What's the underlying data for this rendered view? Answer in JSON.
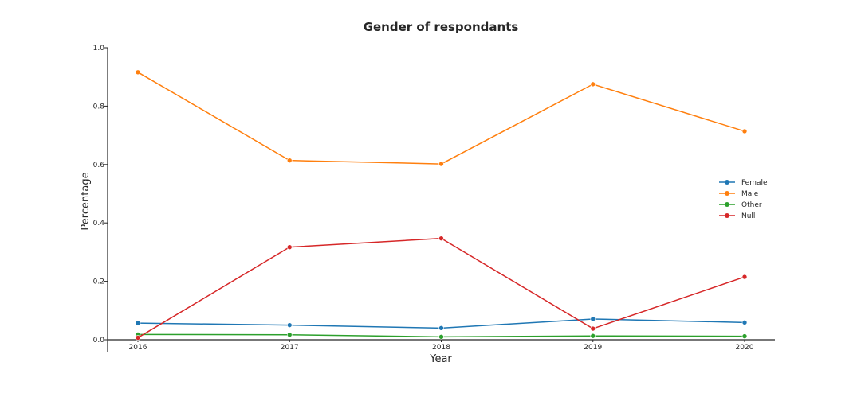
{
  "chart_data": {
    "type": "line",
    "title": "Gender of respondants",
    "xlabel": "Year",
    "ylabel": "Percentage",
    "x": [
      "2016",
      "2017",
      "2018",
      "2019",
      "2020"
    ],
    "ylim": [
      0.0,
      1.0
    ],
    "yticks": [
      "0.0",
      "0.2",
      "0.4",
      "0.6",
      "0.8",
      "1.0"
    ],
    "grid": false,
    "legend_position": "center-right",
    "series": [
      {
        "name": "Female",
        "color": "#1f77b4",
        "values": [
          0.057,
          0.05,
          0.04,
          0.071,
          0.059
        ]
      },
      {
        "name": "Male",
        "color": "#ff7f0e",
        "values": [
          0.916,
          0.614,
          0.602,
          0.875,
          0.714
        ]
      },
      {
        "name": "Other",
        "color": "#2ca02c",
        "values": [
          0.018,
          0.017,
          0.01,
          0.013,
          0.012
        ]
      },
      {
        "name": "Null",
        "color": "#d62728",
        "values": [
          0.007,
          0.317,
          0.347,
          0.038,
          0.215
        ]
      }
    ]
  }
}
